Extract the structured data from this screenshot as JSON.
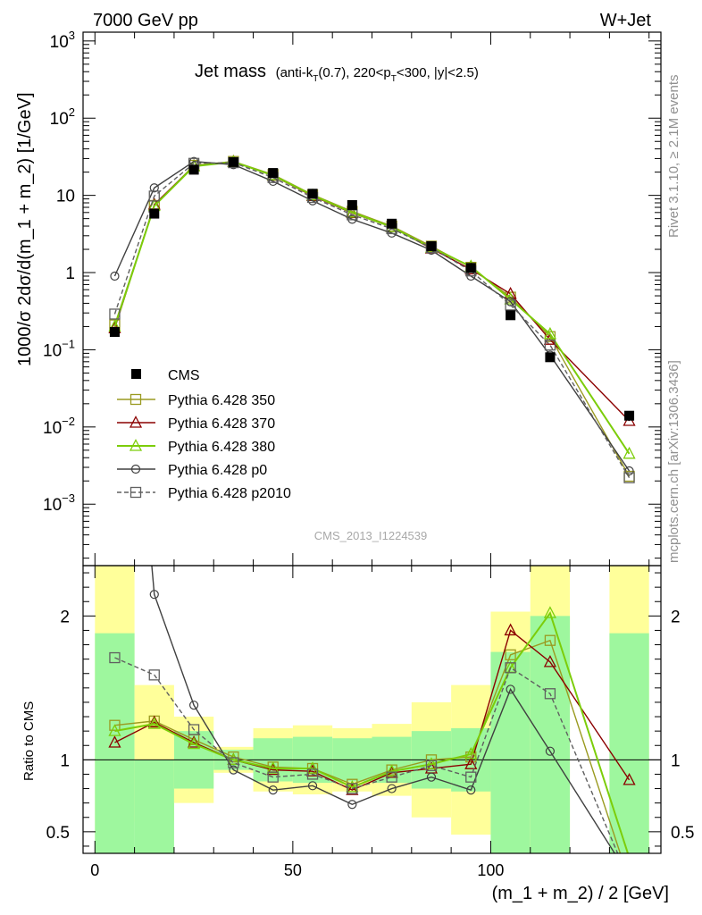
{
  "header": {
    "left": "7000 GeV pp",
    "right": "W+Jet"
  },
  "side_labels": {
    "rivet": "Rivet 3.1.10, ≥ 2.1M events",
    "url": "mcplots.cern.ch [arXiv:1306.3436]"
  },
  "watermark": "CMS_2013_I1224539",
  "chart_data": {
    "type": "line",
    "title": "Jet mass",
    "title_cut_parts": [
      "(anti-k",
      "T",
      "(0.7), 220<p",
      "T",
      "<300, |y|<2.5)"
    ],
    "xlabel": "(m_1 + m_2) / 2 [GeV]",
    "ylabel": "1000/σ 2dσ/d(m_1 + m_2) [1/GeV]",
    "ratio_ylabel": "Ratio to CMS",
    "log_y": true,
    "xlim": [
      -3,
      143
    ],
    "ylim": [
      0.00016,
      1300
    ],
    "ratio_ylim": [
      0.35,
      2.35
    ],
    "x_ticks": [
      0,
      50,
      100
    ],
    "y_ticks": [
      {
        "value": 1000,
        "base": "10",
        "exp": "3"
      },
      {
        "value": 100,
        "base": "10",
        "exp": "2"
      },
      {
        "value": 10,
        "base": "10",
        "exp": ""
      },
      {
        "value": 1,
        "base": "1",
        "exp": ""
      },
      {
        "value": 0.1,
        "base": "10",
        "exp": "−1"
      },
      {
        "value": 0.01,
        "base": "10",
        "exp": "−2"
      },
      {
        "value": 0.001,
        "base": "10",
        "exp": "−3"
      }
    ],
    "ratio_ticks": [
      {
        "value": 2,
        "label": "2"
      },
      {
        "value": 1,
        "label": "1"
      },
      {
        "value": 0.5,
        "label": "0.5"
      }
    ],
    "bins": [
      [
        0,
        10
      ],
      [
        10,
        20
      ],
      [
        20,
        30
      ],
      [
        30,
        40
      ],
      [
        40,
        50
      ],
      [
        50,
        60
      ],
      [
        60,
        70
      ],
      [
        70,
        80
      ],
      [
        80,
        90
      ],
      [
        90,
        100
      ],
      [
        100,
        110
      ],
      [
        110,
        120
      ],
      [
        120,
        130
      ],
      [
        130,
        140
      ]
    ],
    "data": {
      "name": "CMS",
      "x": [
        5,
        15,
        25,
        35,
        45,
        55,
        65,
        75,
        85,
        95,
        105,
        115,
        135
      ],
      "y": [
        0.17,
        5.8,
        21.5,
        27,
        19.5,
        10.5,
        7.5,
        4.3,
        2.2,
        1.15,
        0.28,
        0.08,
        0.014
      ],
      "err": [
        0.01,
        0.3,
        0.9,
        0.9,
        0.6,
        0.4,
        0.3,
        0.15,
        0.08,
        0.05,
        0.02,
        0.007,
        0.002
      ],
      "band_inner": [
        [
          0.0,
          1.88
        ],
        [
          0.0,
          1.0
        ],
        [
          0.8,
          1.2
        ],
        [
          0.93,
          1.07
        ],
        [
          0.85,
          1.15
        ],
        [
          0.84,
          1.16
        ],
        [
          0.85,
          1.15
        ],
        [
          0.84,
          1.16
        ],
        [
          0.8,
          1.2
        ],
        [
          0.78,
          1.22
        ],
        [
          0.0,
          1.75
        ],
        [
          0.0,
          2.0
        ],
        [
          null,
          null
        ],
        [
          0.0,
          1.88
        ]
      ],
      "band_outer": [
        [
          0.0,
          2.35
        ],
        [
          0.57,
          1.52
        ],
        [
          0.7,
          1.3
        ],
        [
          0.91,
          1.09
        ],
        [
          0.78,
          1.22
        ],
        [
          0.76,
          1.24
        ],
        [
          0.78,
          1.22
        ],
        [
          0.75,
          1.25
        ],
        [
          0.6,
          1.4
        ],
        [
          0.48,
          1.52
        ],
        [
          0.0,
          2.03
        ],
        [
          0.0,
          2.35
        ],
        [
          null,
          null
        ],
        [
          0.0,
          2.35
        ]
      ]
    },
    "series": [
      {
        "name": "Pythia 6.428 350",
        "color": "#9a9a20",
        "marker": "square-open",
        "dash": "",
        "x": [
          5,
          15,
          25,
          35,
          45,
          55,
          65,
          75,
          85,
          95,
          105,
          115,
          135
        ],
        "y": [
          0.21,
          7.4,
          24.5,
          27.5,
          18.6,
          10.2,
          6.2,
          4.0,
          2.2,
          1.17,
          0.48,
          0.148,
          0.0023
        ],
        "ratio": [
          1.24,
          1.27,
          1.14,
          1.02,
          0.95,
          0.94,
          0.83,
          0.93,
          1.0,
          1.02,
          1.73,
          1.83,
          0.16
        ]
      },
      {
        "name": "Pythia 6.428 370",
        "color": "#8b0000",
        "marker": "triangle-open",
        "dash": "",
        "x": [
          5,
          15,
          25,
          35,
          45,
          55,
          65,
          75,
          85,
          95,
          105,
          115,
          135
        ],
        "y": [
          0.19,
          7.6,
          24.0,
          27.3,
          18.0,
          9.8,
          5.9,
          3.9,
          2.05,
          1.1,
          0.53,
          0.135,
          0.012
        ],
        "ratio": [
          1.12,
          1.26,
          1.12,
          1.0,
          0.93,
          0.92,
          0.79,
          0.91,
          0.94,
          0.97,
          1.9,
          1.68,
          0.86
        ]
      },
      {
        "name": "Pythia 6.428 380",
        "color": "#7ccd0a",
        "marker": "triangle-open",
        "dash": "",
        "x": [
          5,
          15,
          25,
          35,
          45,
          55,
          65,
          75,
          85,
          95,
          105,
          115,
          135
        ],
        "y": [
          0.2,
          7.3,
          23.8,
          27.2,
          18.2,
          10.0,
          6.0,
          3.9,
          2.1,
          1.2,
          0.45,
          0.16,
          0.0045
        ],
        "ratio": [
          1.2,
          1.25,
          1.11,
          1.0,
          0.94,
          0.94,
          0.81,
          0.92,
          0.97,
          1.04,
          1.64,
          2.02,
          0.32
        ]
      },
      {
        "name": "Pythia 6.428 p0",
        "color": "#404040",
        "marker": "circle-open",
        "dash": "",
        "x": [
          5,
          15,
          25,
          35,
          45,
          55,
          65,
          75,
          85,
          95,
          105,
          115,
          135
        ],
        "y": [
          0.9,
          12.5,
          27.5,
          25.0,
          15.2,
          8.5,
          4.9,
          3.25,
          1.95,
          0.9,
          0.42,
          0.085,
          0.0027
        ],
        "ratio": [
          5.3,
          2.15,
          1.38,
          0.93,
          0.79,
          0.82,
          0.69,
          0.8,
          0.88,
          0.79,
          1.49,
          1.06,
          0.19
        ]
      },
      {
        "name": "Pythia 6.428 p2010",
        "color": "#606060",
        "marker": "square-open",
        "dash": "5,3",
        "x": [
          5,
          15,
          25,
          35,
          45,
          55,
          65,
          75,
          85,
          95,
          105,
          115,
          135
        ],
        "y": [
          0.29,
          9.8,
          26.0,
          26.5,
          17.0,
          9.4,
          5.6,
          3.7,
          2.1,
          1.05,
          0.38,
          0.115,
          0.0022
        ],
        "ratio": [
          1.71,
          1.59,
          1.21,
          0.98,
          0.88,
          0.9,
          0.8,
          0.88,
          0.96,
          0.88,
          1.64,
          1.46,
          0.16
        ]
      }
    ]
  }
}
